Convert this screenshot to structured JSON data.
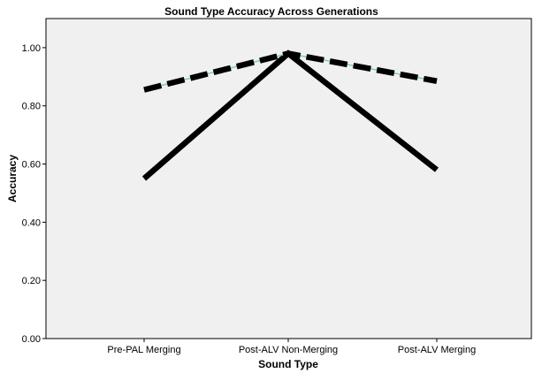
{
  "chart_data": {
    "type": "line",
    "title": "Sound Type Accuracy Across Generations",
    "xlabel": "Sound Type",
    "ylabel": "Accuracy",
    "categories": [
      "Pre-PAL Merging",
      "Post-ALV Non-Merging",
      "Post-ALV Merging"
    ],
    "ylim": [
      0,
      1.1
    ],
    "yticks": [
      "0.00",
      "0.20",
      "0.40",
      "0.60",
      "0.80",
      "1.00"
    ],
    "grid": false,
    "legend": "none",
    "series": [
      {
        "values": [
          0.55,
          0.98,
          0.58
        ],
        "style": "solid",
        "color": "#000000"
      },
      {
        "values": [
          0.855,
          0.98,
          0.885
        ],
        "style": "dashed",
        "color": "#000000",
        "overlay_color": "#7fcf9f"
      }
    ],
    "colors": {
      "plot_background": "#f0f0f0",
      "axis": "#000000"
    }
  }
}
